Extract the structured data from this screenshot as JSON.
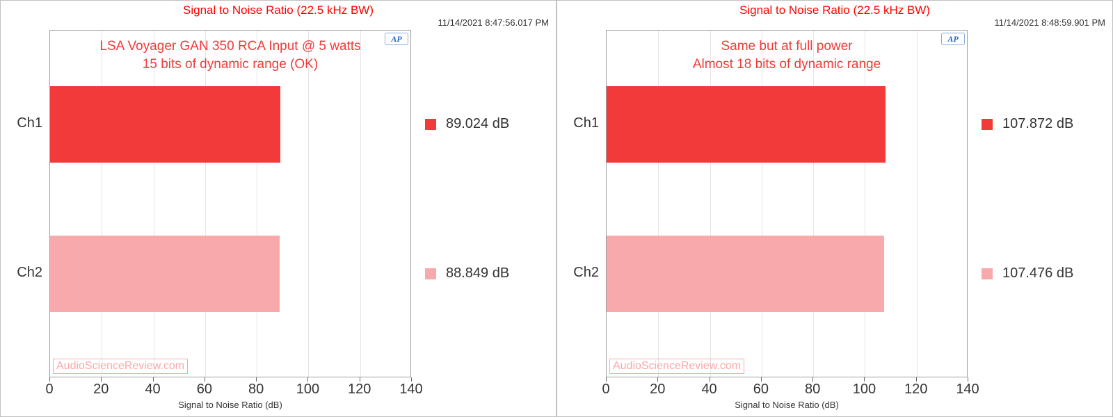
{
  "xaxis": {
    "min": 0,
    "max": 140,
    "step": 20,
    "label": "Signal to Noise Ratio (dB)"
  },
  "colors": {
    "ch1": "#f23a3a",
    "ch2": "#f7a9ac",
    "title": "#ff0000",
    "annotation": "#f23a3a",
    "watermark_text": "#f7a9ac",
    "watermark_border": "#f7a9ac"
  },
  "ap_logo_text": "AP",
  "watermark": "AudioScienceReview.com",
  "panels": [
    {
      "title": "Signal to Noise Ratio (22.5 kHz BW)",
      "timestamp": "11/14/2021 8:47:56.017 PM",
      "annotation_line1": "LSA Voyager GAN 350 RCA Input @ 5 watts",
      "annotation_line2": "15 bits of dynamic range (OK)",
      "bars": [
        {
          "label": "Ch1",
          "value": 89.024,
          "legend": "89.024  dB",
          "color_key": "ch1"
        },
        {
          "label": "Ch2",
          "value": 88.849,
          "legend": "88.849  dB",
          "color_key": "ch2"
        }
      ]
    },
    {
      "title": "Signal to Noise Ratio (22.5 kHz BW)",
      "timestamp": "11/14/2021 8:48:59.901 PM",
      "annotation_line1": "Same but at full power",
      "annotation_line2": "Almost 18 bits of dynamic range",
      "bars": [
        {
          "label": "Ch1",
          "value": 107.872,
          "legend": "107.872  dB",
          "color_key": "ch1"
        },
        {
          "label": "Ch2",
          "value": 107.476,
          "legend": "107.476  dB",
          "color_key": "ch2"
        }
      ]
    }
  ]
}
